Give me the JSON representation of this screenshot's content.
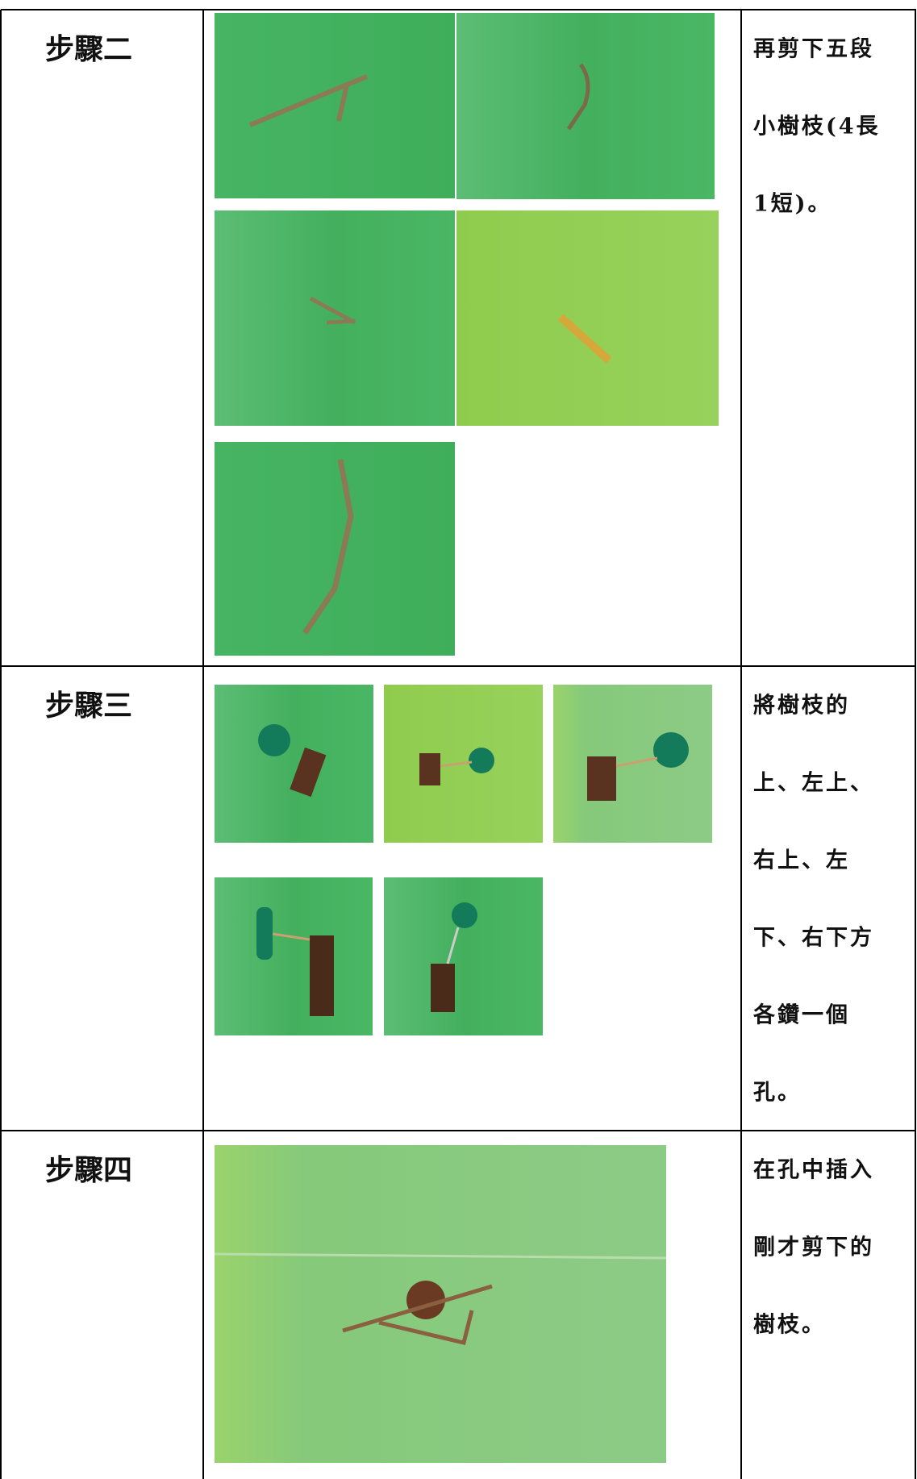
{
  "rows": [
    {
      "step": "步驟二",
      "description": [
        "再剪下五段",
        "小樹枝(4長",
        "1短)。"
      ]
    },
    {
      "step": "步驟三",
      "description": [
        "將樹枝的",
        "上、左上、",
        "右上、左",
        "下、右下方",
        "各鑽一個",
        "孔。"
      ]
    },
    {
      "step": "步驟四",
      "description": [
        "在孔中插入",
        "剛才剪下的",
        "樹枝。"
      ]
    }
  ]
}
